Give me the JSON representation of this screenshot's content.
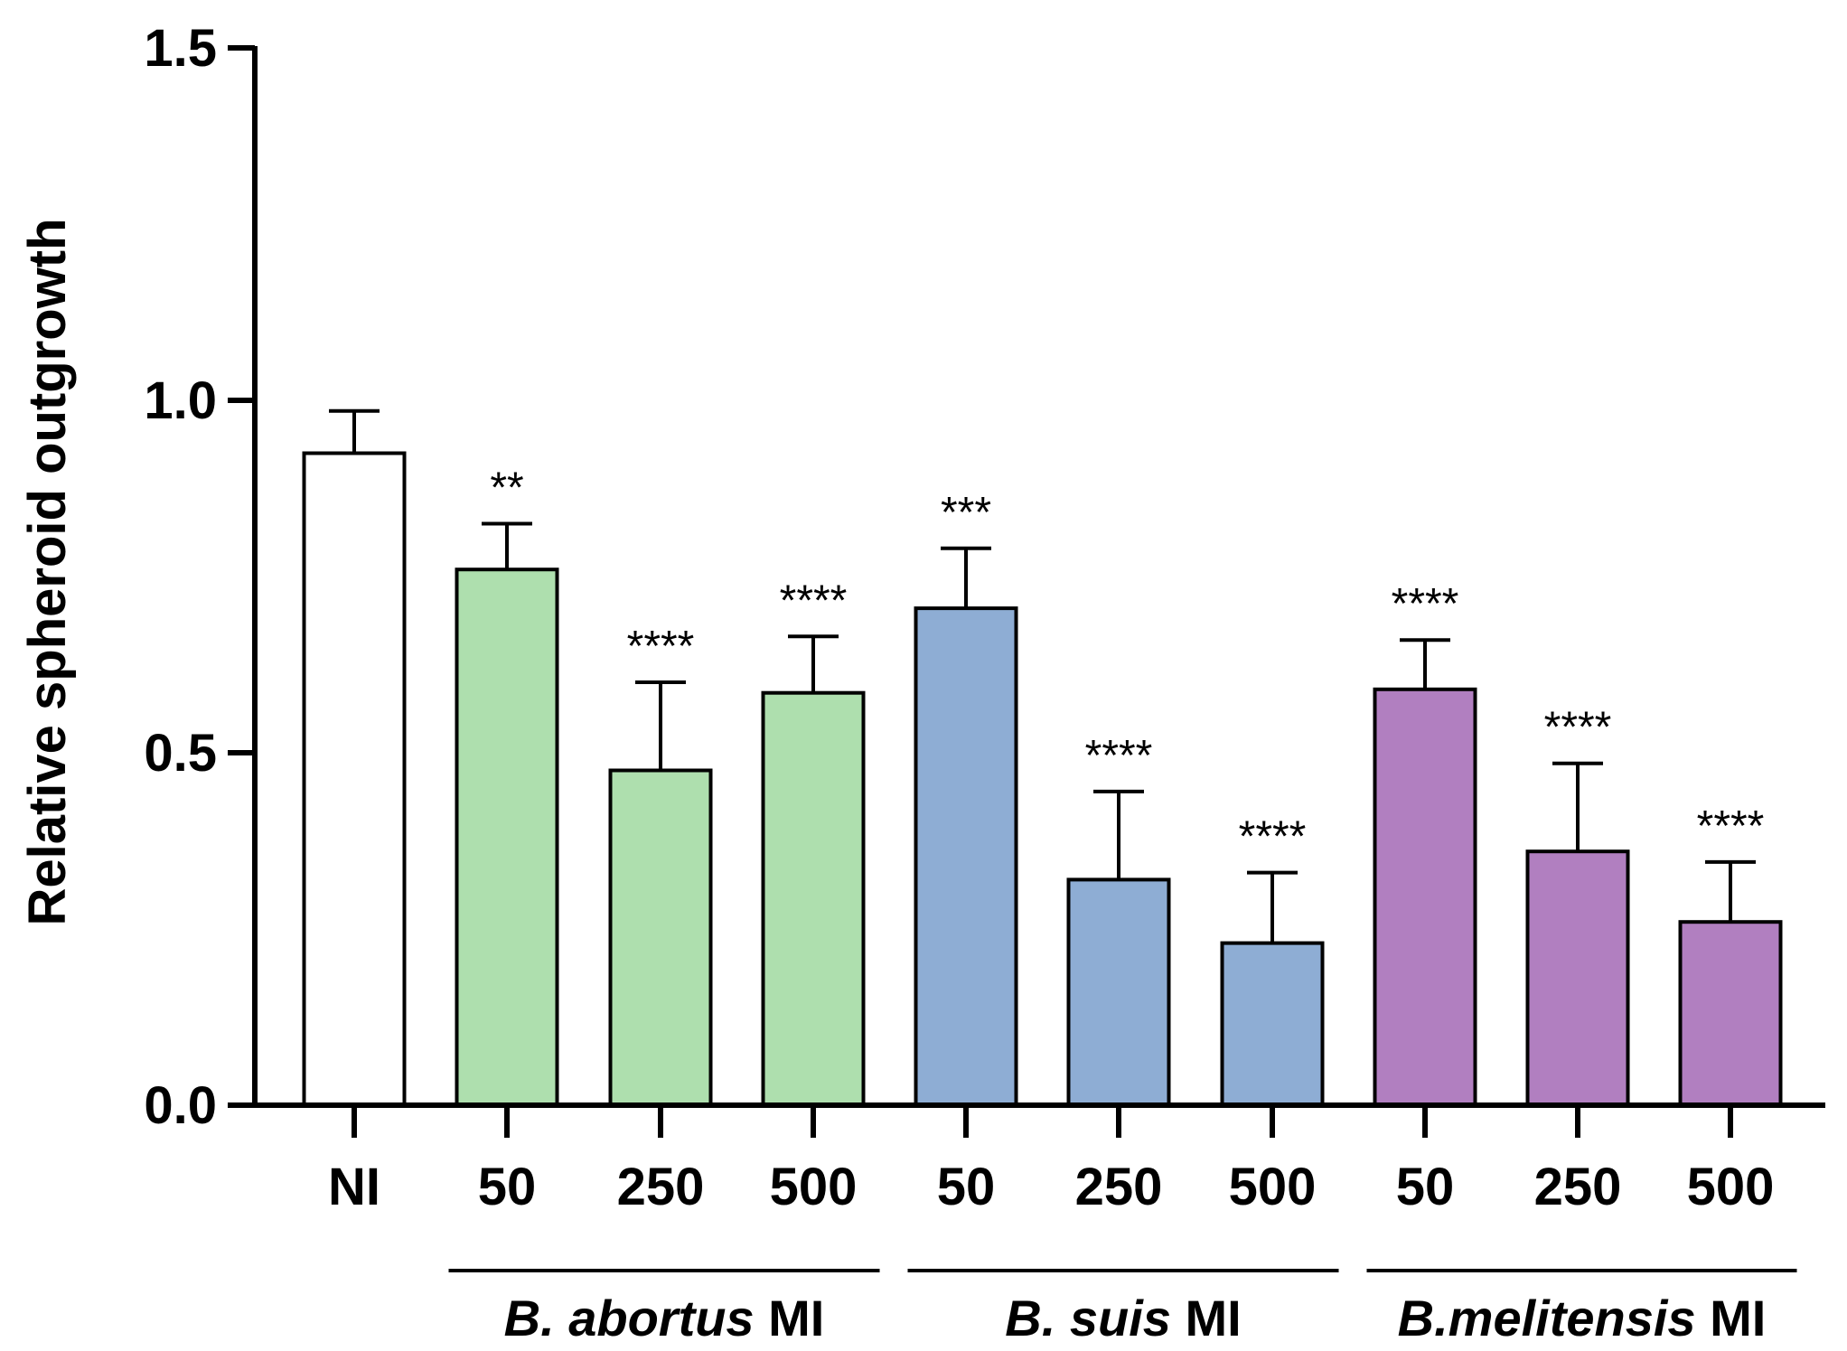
{
  "chart_data": {
    "type": "bar",
    "ylabel": "Relative spheroid outgrowth",
    "ylim": [
      0,
      1.5
    ],
    "yticks": [
      "0.0",
      "0.5",
      "1.0",
      "1.5"
    ],
    "ytick_values": [
      0,
      0.5,
      1.0,
      1.5
    ],
    "categories": [
      "NI",
      "50",
      "250",
      "500",
      "50",
      "250",
      "500",
      "50",
      "250",
      "500"
    ],
    "values": [
      0.925,
      0.76,
      0.475,
      0.585,
      0.705,
      0.32,
      0.23,
      0.59,
      0.36,
      0.26
    ],
    "errors": [
      0.06,
      0.065,
      0.125,
      0.08,
      0.085,
      0.125,
      0.1,
      0.07,
      0.125,
      0.085
    ],
    "significance": [
      "",
      "**",
      "****",
      "****",
      "***",
      "****",
      "****",
      "****",
      "****",
      "****"
    ],
    "bar_colors": [
      "#ffffff",
      "#aedfae",
      "#aedfae",
      "#aedfae",
      "#8eadd4",
      "#8eadd4",
      "#8eadd4",
      "#b17fc0",
      "#b17fc0",
      "#b17fc0"
    ],
    "groups": [
      {
        "name_italic": "B. abortus",
        "name_rest": " MI",
        "start": 1,
        "end": 3
      },
      {
        "name_italic": "B. suis",
        "name_rest": " MI",
        "start": 4,
        "end": 6
      },
      {
        "name_italic": "B.melitensis",
        "name_rest": " MI",
        "start": 7,
        "end": 9
      }
    ]
  }
}
